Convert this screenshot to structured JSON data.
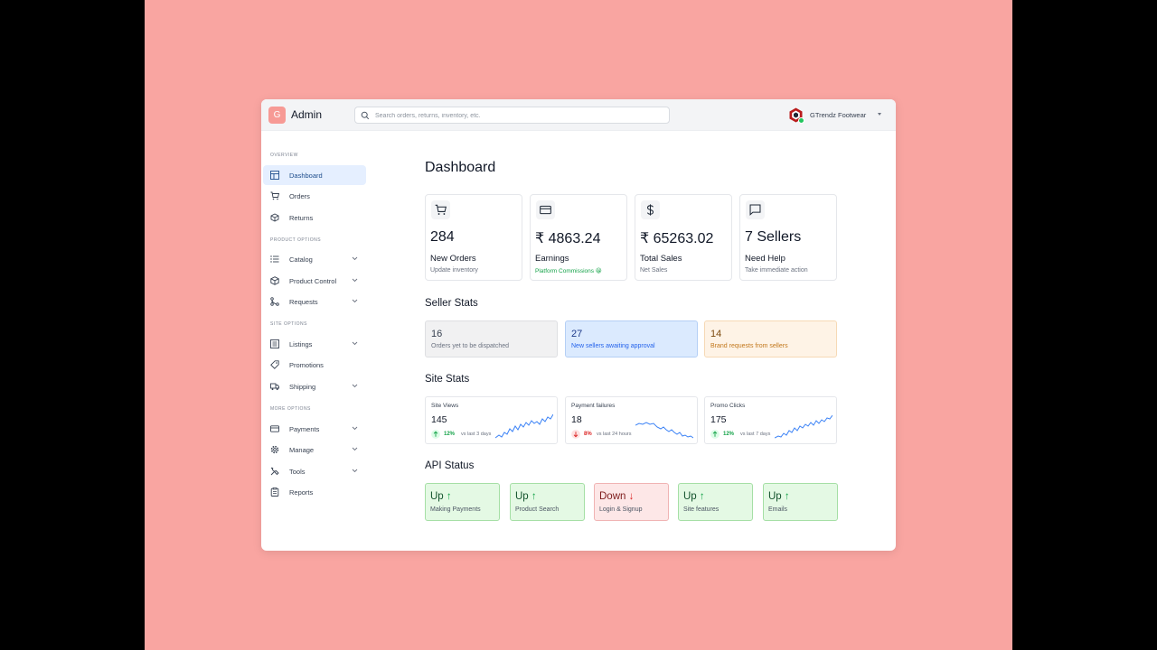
{
  "app": {
    "logo_letter": "G",
    "title": "Admin"
  },
  "search": {
    "placeholder": "Search orders, returns, inventory, etc."
  },
  "account": {
    "name": "GTrendz Footwear"
  },
  "sidebar": {
    "sections": [
      "OVERVIEW",
      "PRODUCT OPTIONS",
      "SITE OPTIONS",
      "MORE OPTIONS"
    ],
    "items": [
      {
        "label": "Dashboard",
        "icon": "dashboard-icon",
        "active": true
      },
      {
        "label": "Orders",
        "icon": "cart-icon"
      },
      {
        "label": "Returns",
        "icon": "box-return-icon"
      },
      {
        "label": "Catalog",
        "icon": "list-icon"
      },
      {
        "label": "Product Control",
        "icon": "cube-icon"
      },
      {
        "label": "Requests",
        "icon": "merge-icon"
      },
      {
        "label": "Listings",
        "icon": "listing-icon"
      },
      {
        "label": "Promotions",
        "icon": "tag-icon"
      },
      {
        "label": "Shipping",
        "icon": "truck-icon"
      },
      {
        "label": "Payments",
        "icon": "card-icon"
      },
      {
        "label": "Manage",
        "icon": "gear-icon"
      },
      {
        "label": "Tools",
        "icon": "tools-icon"
      },
      {
        "label": "Reports",
        "icon": "clipboard-icon"
      }
    ]
  },
  "main": {
    "title": "Dashboard",
    "cards": [
      {
        "value": "284",
        "label": "New Orders",
        "sub": "Update inventory",
        "icon": "cart-icon"
      },
      {
        "value": "₹ 4863.24",
        "label": "Earnings",
        "sub": "Platform Commissions 😀",
        "icon": "card-icon"
      },
      {
        "value": "₹ 65263.02",
        "label": "Total Sales",
        "sub": "Net Sales",
        "icon": "dollar-icon"
      },
      {
        "value": "7 Sellers",
        "label": "Need Help",
        "sub": "Take immediate action",
        "icon": "chat-icon"
      }
    ],
    "seller_stats": {
      "title": "Seller Stats",
      "items": [
        {
          "num": "16",
          "desc": "Orders yet to be dispatched"
        },
        {
          "num": "27",
          "desc": "New sellers awaiting approval"
        },
        {
          "num": "14",
          "desc": "Brand requests from sellers"
        }
      ]
    },
    "site_stats": {
      "title": "Site Stats",
      "items": [
        {
          "title": "Site Views",
          "value": "145",
          "pct": "12%",
          "vs": "vs last 3 days",
          "direction": "up"
        },
        {
          "title": "Payment failures",
          "value": "18",
          "pct": "8%",
          "vs": "vs last 24 hours",
          "direction": "down"
        },
        {
          "title": "Promo Clicks",
          "value": "175",
          "pct": "12%",
          "vs": "vs last 7 days",
          "direction": "up"
        }
      ]
    },
    "api_status": {
      "title": "API Status",
      "items": [
        {
          "state": "Up",
          "arrow": "↑",
          "name": "Making Payments",
          "status": "up"
        },
        {
          "state": "Up",
          "arrow": "↑",
          "name": "Product Search",
          "status": "up"
        },
        {
          "state": "Down",
          "arrow": "↓",
          "name": "Login & Signup",
          "status": "down"
        },
        {
          "state": "Up",
          "arrow": "↑",
          "name": "Site features",
          "status": "up"
        },
        {
          "state": "Up",
          "arrow": "↑",
          "name": "Emails",
          "status": "up"
        }
      ]
    }
  },
  "colors": {
    "background": "#f9a5a1",
    "accent": "#f79a95",
    "active_nav": "#e5efff",
    "sparkline": "#3b82f6",
    "up": "#16a34a",
    "down": "#dc2626"
  }
}
